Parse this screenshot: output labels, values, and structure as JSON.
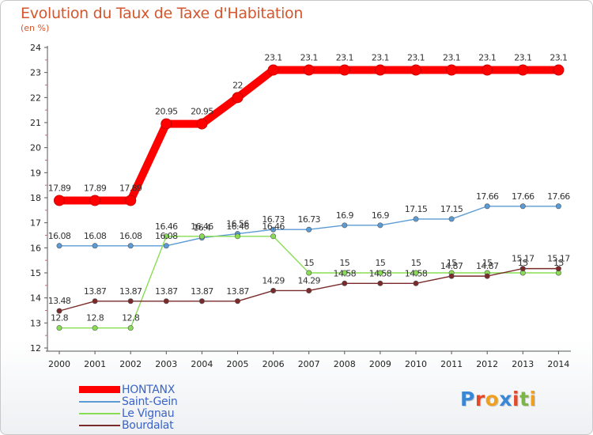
{
  "title": "Evolution du Taux de Taxe d'Habitation",
  "subtitle": "(en %)",
  "logo": {
    "text": "Proxiti",
    "colors": [
      "#3a87d6",
      "#e24a2a",
      "#f0a020",
      "#3a87d6",
      "#e24a2a",
      "#7ab648",
      "#f0a020"
    ]
  },
  "chart_data": {
    "type": "line",
    "x": [
      2000,
      2001,
      2002,
      2003,
      2004,
      2005,
      2006,
      2007,
      2008,
      2009,
      2010,
      2011,
      2012,
      2013,
      2014
    ],
    "ylim": [
      12,
      24
    ],
    "yticks": [
      12,
      13,
      14,
      15,
      16,
      17,
      18,
      19,
      20,
      21,
      22,
      23,
      24
    ],
    "grid": false,
    "legend_position": "bottom-left",
    "series": [
      {
        "name": "HONTANX",
        "color": "#ff0000",
        "emphasis": true,
        "values": [
          17.89,
          17.89,
          17.89,
          20.95,
          20.95,
          22,
          23.1,
          23.1,
          23.1,
          23.1,
          23.1,
          23.1,
          23.1,
          23.1,
          23.1
        ],
        "labels": [
          "17.89",
          "17.89",
          "17.89",
          "20.95",
          "20.95",
          "22",
          "23.1",
          "23.1",
          "23.1",
          "23.1",
          "23.1",
          "23.1",
          "23.1",
          "23.1",
          "23.1"
        ]
      },
      {
        "name": "Saint-Gein",
        "color": "#5b9bd5",
        "values": [
          16.08,
          16.08,
          16.08,
          16.08,
          16.4,
          16.56,
          16.73,
          16.73,
          16.9,
          16.9,
          17.15,
          17.15,
          17.66,
          17.66,
          17.66
        ],
        "labels": [
          "16.08",
          "16.08",
          "16.08",
          "16.08",
          "16.4",
          "16.56",
          "16.73",
          "16.73",
          "16.9",
          "16.9",
          "17.15",
          "17.15",
          "17.66",
          "17.66",
          "17.66"
        ]
      },
      {
        "name": "Le Vignau",
        "color": "#88dd55",
        "values": [
          12.8,
          12.8,
          12.8,
          16.46,
          16.46,
          16.46,
          16.46,
          15,
          15,
          15,
          15,
          15,
          15,
          15,
          15
        ],
        "labels": [
          "12.8",
          "12.8",
          "12.8",
          "16.46",
          "16.46",
          "16.46",
          "16.46",
          "15",
          "15",
          "15",
          "15",
          "15",
          "15",
          "15",
          "15"
        ]
      },
      {
        "name": "Bourdalat",
        "color": "#7a2a2a",
        "values": [
          13.48,
          13.87,
          13.87,
          13.87,
          13.87,
          13.87,
          14.29,
          14.29,
          14.58,
          14.58,
          14.58,
          14.87,
          14.87,
          15.17,
          15.17
        ],
        "labels": [
          "13.48",
          "13.87",
          "13.87",
          "13.87",
          "13.87",
          "13.87",
          "14.29",
          "14.29",
          "14.58",
          "14.58",
          "14.58",
          "14.87",
          "14.87",
          "15.17",
          "15.17"
        ]
      }
    ]
  }
}
